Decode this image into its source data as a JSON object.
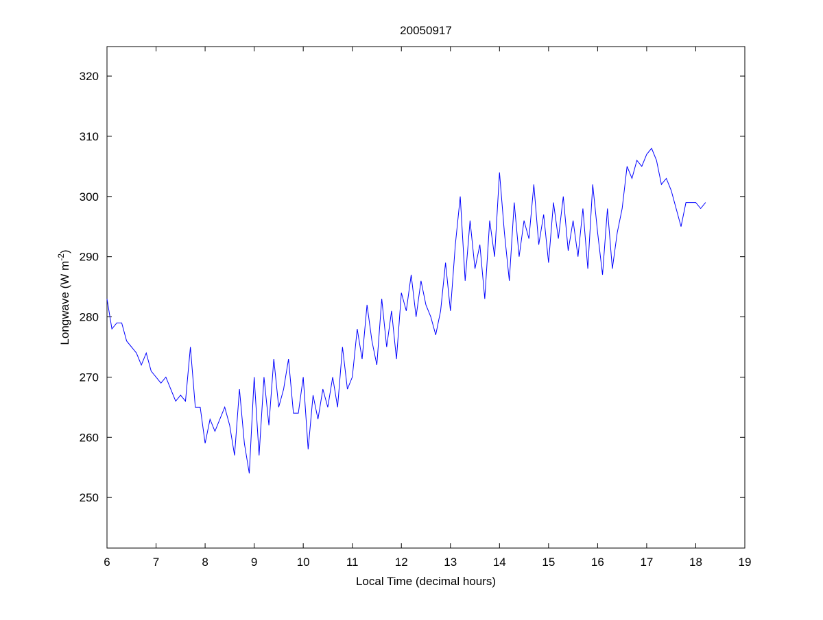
{
  "chart_data": {
    "type": "line",
    "title": "20050917",
    "x_label": "Local Time (decimal hours)",
    "y_label": {
      "text": "Longwave (W m",
      "superscript": "-2",
      "suffix": ")"
    },
    "xlim": [
      6,
      19
    ],
    "xticks": [
      6,
      7,
      8,
      9,
      10,
      11,
      12,
      13,
      14,
      15,
      16,
      17,
      18,
      19
    ],
    "ylim": [
      241.6,
      324.9
    ],
    "yticks": [
      250,
      260,
      270,
      280,
      290,
      300,
      310,
      320
    ],
    "grid": false,
    "series": [
      {
        "color": "#0000ff",
        "x": [
          6.0,
          6.1,
          6.2,
          6.3,
          6.4,
          6.5,
          6.6,
          6.7,
          6.8,
          6.9,
          7.0,
          7.1,
          7.2,
          7.3,
          7.4,
          7.5,
          7.6,
          7.7,
          7.8,
          7.9,
          8.0,
          8.1,
          8.2,
          8.3,
          8.4,
          8.5,
          8.6,
          8.7,
          8.8,
          8.9,
          9.0,
          9.1,
          9.2,
          9.3,
          9.4,
          9.5,
          9.6,
          9.7,
          9.8,
          9.9,
          10.0,
          10.1,
          10.2,
          10.3,
          10.4,
          10.5,
          10.6,
          10.7,
          10.8,
          10.9,
          11.0,
          11.1,
          11.2,
          11.3,
          11.4,
          11.5,
          11.6,
          11.7,
          11.8,
          11.9,
          12.0,
          12.1,
          12.2,
          12.3,
          12.4,
          12.5,
          12.6,
          12.7,
          12.8,
          12.9,
          13.0,
          13.1,
          13.2,
          13.3,
          13.4,
          13.5,
          13.6,
          13.7,
          13.8,
          13.9,
          14.0,
          14.1,
          14.2,
          14.3,
          14.4,
          14.5,
          14.6,
          14.7,
          14.8,
          14.9,
          15.0,
          15.1,
          15.2,
          15.3,
          15.4,
          15.5,
          15.6,
          15.7,
          15.8,
          15.9,
          16.0,
          16.1,
          16.2,
          16.3,
          16.4,
          16.5,
          16.6,
          16.7,
          16.8,
          16.9,
          17.0,
          17.1,
          17.2,
          17.3,
          17.4,
          17.5,
          17.6,
          17.7,
          17.8,
          17.9,
          18.0,
          18.1,
          18.2
        ],
        "values": [
          283,
          278,
          279,
          279,
          276,
          275,
          274,
          272,
          274,
          271,
          270,
          269,
          270,
          268,
          266,
          267,
          266,
          275,
          265,
          265,
          259,
          263,
          261,
          263,
          265,
          262,
          257,
          268,
          259,
          254,
          270,
          257,
          270,
          262,
          273,
          265,
          268,
          273,
          264,
          264,
          270,
          258,
          267,
          263,
          268,
          265,
          270,
          265,
          275,
          268,
          270,
          278,
          273,
          282,
          276,
          272,
          283,
          275,
          281,
          273,
          284,
          281,
          287,
          280,
          286,
          282,
          280,
          277,
          281,
          289,
          281,
          292,
          300,
          286,
          296,
          288,
          292,
          283,
          296,
          290,
          304,
          294,
          286,
          299,
          290,
          296,
          293,
          302,
          292,
          297,
          289,
          299,
          293,
          300,
          291,
          296,
          290,
          298,
          288,
          302,
          294,
          287,
          298,
          288,
          294,
          298,
          305,
          303,
          306,
          305,
          307,
          308,
          306,
          302,
          303,
          301,
          298,
          295,
          299,
          299,
          299,
          298,
          299
        ]
      }
    ]
  }
}
